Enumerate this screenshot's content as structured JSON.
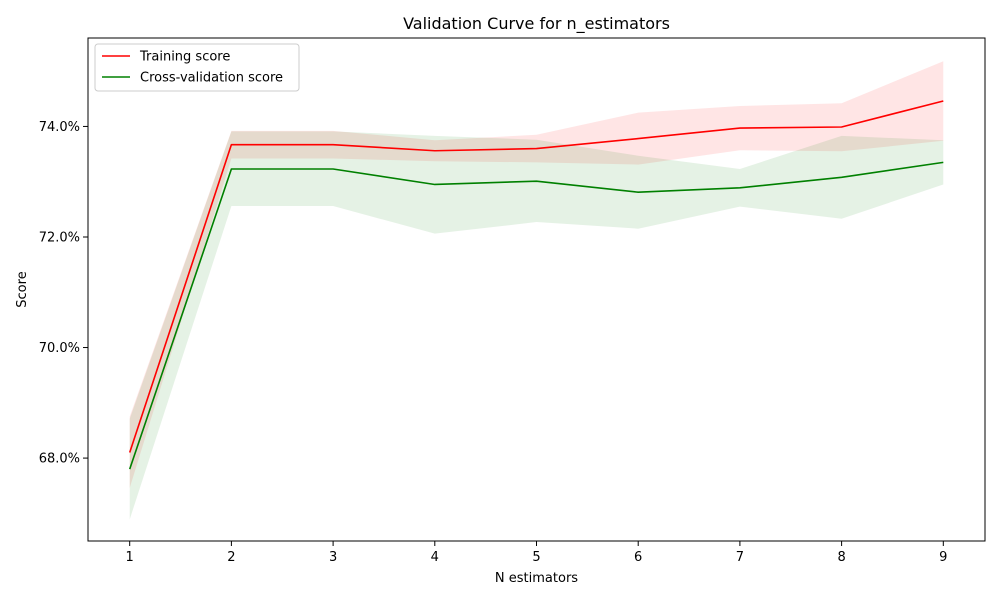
{
  "chart_data": {
    "type": "line",
    "title": "Validation Curve for n_estimators",
    "xlabel": "N estimators",
    "ylabel": "Score",
    "x": [
      1,
      2,
      3,
      4,
      5,
      6,
      7,
      8,
      9
    ],
    "x_tick_labels": [
      "1",
      "2",
      "3",
      "4",
      "5",
      "6",
      "7",
      "8",
      "9"
    ],
    "xlim": [
      0.59,
      9.41
    ],
    "ylim": [
      66.5,
      75.6
    ],
    "y_ticks": [
      68.0,
      70.0,
      72.0,
      74.0
    ],
    "y_tick_labels": [
      "68.0%",
      "70.0%",
      "72.0%",
      "74.0%"
    ],
    "grid": false,
    "legend_position": "top-left",
    "series": [
      {
        "name": "Training score",
        "color": "#ff0000",
        "band_color": "#ff0000",
        "values": [
          68.1,
          73.67,
          73.67,
          73.56,
          73.6,
          73.78,
          73.97,
          73.99,
          74.46
        ],
        "lower": [
          67.46,
          73.42,
          73.42,
          73.37,
          73.35,
          73.31,
          73.57,
          73.55,
          73.74
        ],
        "upper": [
          68.75,
          73.92,
          73.92,
          73.75,
          73.85,
          74.25,
          74.37,
          74.42,
          75.18
        ]
      },
      {
        "name": "Cross-validation score",
        "color": "#008000",
        "band_color": "#008000",
        "values": [
          67.8,
          73.23,
          73.23,
          72.95,
          73.01,
          72.81,
          72.89,
          73.08,
          73.35
        ],
        "lower": [
          66.89,
          72.56,
          72.56,
          72.06,
          72.27,
          72.15,
          72.55,
          72.33,
          72.95
        ],
        "upper": [
          68.71,
          73.91,
          73.91,
          73.83,
          73.76,
          73.47,
          73.23,
          73.83,
          73.75
        ]
      }
    ]
  }
}
